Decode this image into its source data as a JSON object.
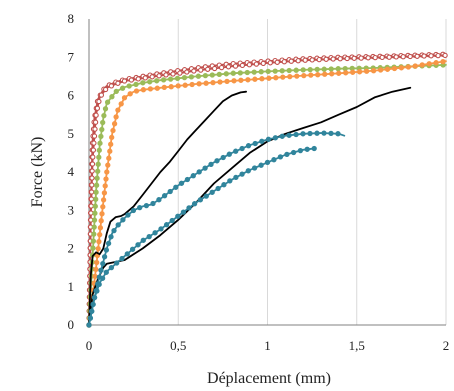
{
  "chart_data": {
    "type": "line",
    "title": "",
    "xlabel": "Déplacement (mm)",
    "ylabel": "Force (kN)",
    "xlim": [
      0,
      2
    ],
    "ylim": [
      0,
      8
    ],
    "xticks": [
      0,
      0.5,
      1,
      1.5,
      2
    ],
    "xtick_labels": [
      "0",
      "0,5",
      "1",
      "1,5",
      "2"
    ],
    "yticks": [
      0,
      1,
      2,
      3,
      4,
      5,
      6,
      7,
      8
    ],
    "ytick_labels": [
      "0",
      "1",
      "2",
      "3",
      "4",
      "5",
      "6",
      "7",
      "8"
    ],
    "grid": "vertical",
    "legend": "none",
    "series": [
      {
        "color": "#c0504d",
        "marker": "circle",
        "marker_fill": "#ffffff",
        "x": [
          0,
          0.005,
          0.01,
          0.02,
          0.03,
          0.05,
          0.08,
          0.1,
          0.15,
          0.2,
          0.3,
          0.4,
          0.5,
          0.6,
          0.7,
          0.8,
          1.0,
          1.2,
          1.4,
          1.6,
          1.8,
          2.0
        ],
        "y": [
          0,
          1.5,
          3.2,
          4.8,
          5.4,
          5.9,
          6.15,
          6.25,
          6.35,
          6.42,
          6.5,
          6.58,
          6.65,
          6.72,
          6.78,
          6.83,
          6.9,
          6.96,
          7.0,
          7.02,
          7.05,
          7.08
        ]
      },
      {
        "color": "#c0504d",
        "marker": "circle",
        "marker_fill": "#ffffff",
        "x": [
          0,
          0.005,
          0.01,
          0.02,
          0.04,
          0.06,
          0.1,
          0.15,
          0.2,
          0.3,
          0.4,
          0.5,
          0.6,
          0.8,
          1.0,
          1.2,
          1.4,
          1.6,
          1.8,
          2.0
        ],
        "y": [
          0,
          1.3,
          2.8,
          4.3,
          5.5,
          5.95,
          6.2,
          6.3,
          6.38,
          6.45,
          6.52,
          6.58,
          6.65,
          6.76,
          6.85,
          6.92,
          6.96,
          6.99,
          7.02,
          7.05
        ]
      },
      {
        "color": "#9bbb59",
        "marker": "circle",
        "marker_fill": "#9bbb59",
        "x": [
          0,
          0.02,
          0.04,
          0.06,
          0.08,
          0.1,
          0.15,
          0.2,
          0.3,
          0.4,
          0.5,
          0.6,
          0.8,
          1.0,
          1.2,
          1.4,
          1.6,
          1.8,
          2.0
        ],
        "y": [
          0,
          1.8,
          3.5,
          4.7,
          5.4,
          5.8,
          6.1,
          6.22,
          6.33,
          6.4,
          6.45,
          6.5,
          6.58,
          6.63,
          6.67,
          6.7,
          6.72,
          6.76,
          6.8
        ]
      },
      {
        "color": "#f79646",
        "marker": "circle",
        "marker_fill": "#f79646",
        "x": [
          0,
          0.04,
          0.07,
          0.1,
          0.13,
          0.16,
          0.2,
          0.25,
          0.3,
          0.4,
          0.5,
          0.6,
          0.8,
          1.0,
          1.2,
          1.4,
          1.6,
          1.8,
          2.0
        ],
        "y": [
          0,
          1.5,
          2.8,
          4.0,
          5.0,
          5.6,
          5.95,
          6.1,
          6.15,
          6.2,
          6.25,
          6.3,
          6.38,
          6.45,
          6.52,
          6.58,
          6.65,
          6.75,
          6.9
        ]
      },
      {
        "color": "#000000",
        "marker": "none",
        "x": [
          0,
          0.01,
          0.02,
          0.04,
          0.06,
          0.08,
          0.1,
          0.12,
          0.15,
          0.18,
          0.2,
          0.25,
          0.3,
          0.35,
          0.4,
          0.45,
          0.5,
          0.55,
          0.6,
          0.65,
          0.7,
          0.75,
          0.8,
          0.85,
          0.88
        ],
        "y": [
          0,
          1.3,
          1.8,
          1.9,
          1.85,
          2.0,
          2.4,
          2.7,
          2.82,
          2.85,
          2.9,
          3.1,
          3.4,
          3.7,
          4.0,
          4.25,
          4.55,
          4.85,
          5.1,
          5.35,
          5.6,
          5.85,
          6.0,
          6.08,
          6.1
        ]
      },
      {
        "color": "#000000",
        "marker": "none",
        "x": [
          0,
          0.02,
          0.05,
          0.08,
          0.1,
          0.15,
          0.2,
          0.25,
          0.3,
          0.4,
          0.5,
          0.6,
          0.7,
          0.8,
          0.9,
          1.0,
          1.1,
          1.2,
          1.3,
          1.4,
          1.5,
          1.6,
          1.7,
          1.8
        ],
        "y": [
          0,
          0.8,
          1.2,
          1.5,
          1.6,
          1.65,
          1.7,
          1.85,
          2.0,
          2.35,
          2.75,
          3.2,
          3.7,
          4.1,
          4.5,
          4.8,
          5.0,
          5.15,
          5.3,
          5.5,
          5.7,
          5.95,
          6.1,
          6.2
        ]
      },
      {
        "color": "#31859c",
        "marker": "circle",
        "marker_fill": "#31859c",
        "x": [
          0,
          0.03,
          0.06,
          0.1,
          0.13,
          0.16,
          0.2,
          0.25,
          0.3,
          0.35,
          0.4,
          0.5,
          0.6,
          0.7,
          0.8,
          0.9,
          1.0,
          1.1,
          1.2,
          1.3,
          1.4,
          1.43
        ],
        "y": [
          0,
          0.7,
          1.3,
          2.0,
          2.4,
          2.6,
          2.8,
          3.0,
          3.1,
          3.15,
          3.3,
          3.65,
          3.95,
          4.25,
          4.5,
          4.7,
          4.85,
          4.95,
          5.0,
          5.02,
          5.0,
          4.95
        ]
      },
      {
        "color": "#31859c",
        "marker": "circle",
        "marker_fill": "#31859c",
        "x": [
          0,
          0.03,
          0.06,
          0.1,
          0.15,
          0.2,
          0.25,
          0.3,
          0.4,
          0.5,
          0.6,
          0.7,
          0.8,
          0.9,
          1.0,
          1.1,
          1.2,
          1.27
        ],
        "y": [
          0,
          0.7,
          1.1,
          1.4,
          1.6,
          1.8,
          2.0,
          2.2,
          2.5,
          2.85,
          3.2,
          3.5,
          3.8,
          4.05,
          4.25,
          4.45,
          4.58,
          4.62
        ]
      }
    ]
  }
}
